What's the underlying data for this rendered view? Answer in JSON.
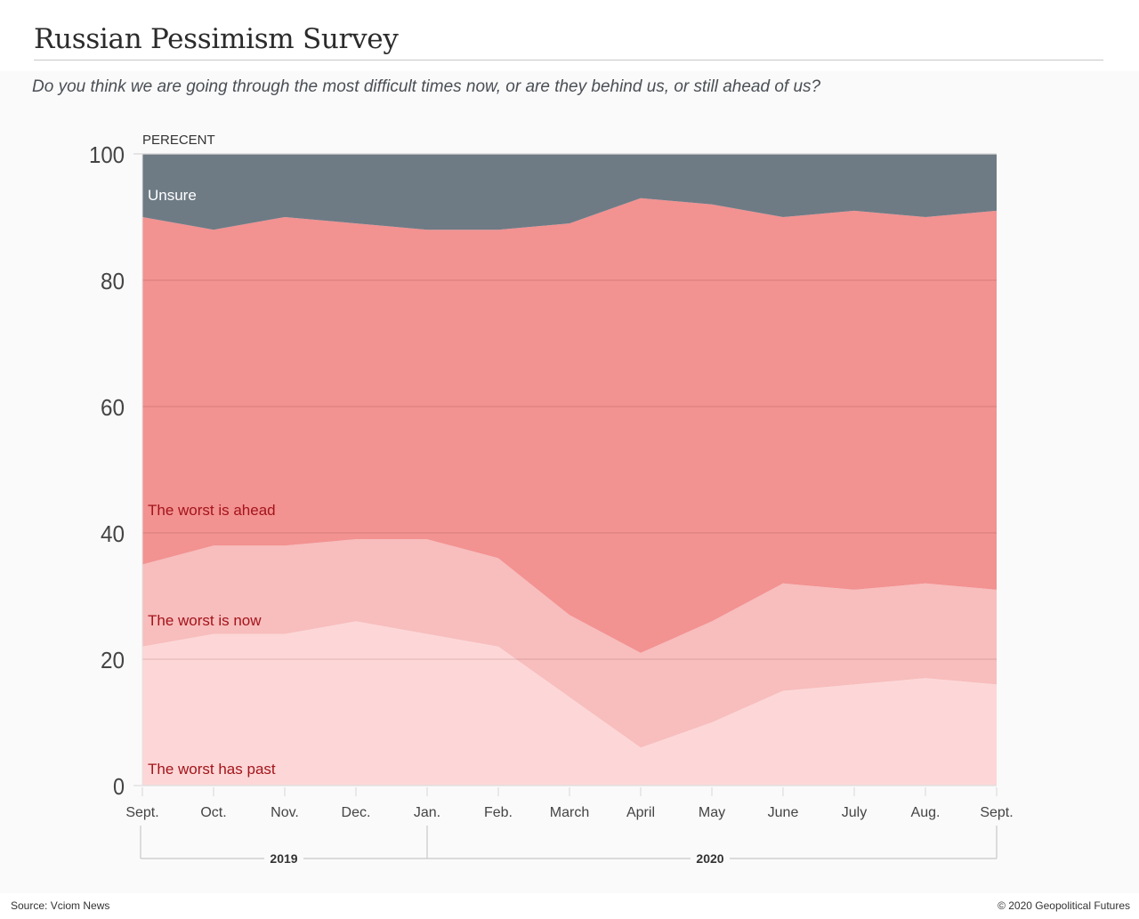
{
  "header": {
    "title": "Russian Pessimism Survey",
    "subtitle": "Do you think we are going through the most difficult times now, or are they behind us, or still ahead of us?"
  },
  "footer": {
    "source": "Source: Vciom News",
    "copyright": "© 2020 Geopolitical Futures"
  },
  "colors": {
    "unsure": "#6e7b85",
    "ahead": "#f29291",
    "now": "#f8bdbd",
    "past": "#fdd7d7",
    "label_dark": "#a3141b",
    "label_light": "#ffffff"
  },
  "chart_data": {
    "type": "area",
    "stacked": true,
    "title": "Russian Pessimism Survey",
    "subtitle": "Do you think we are going through the most difficult times now, or are they behind us, or still ahead of us?",
    "ylabel": "PERECENT",
    "xlabel": "",
    "ylim": [
      0,
      100
    ],
    "yticks": [
      0,
      20,
      40,
      60,
      80,
      100
    ],
    "grid": true,
    "legend": "inline-labels-left",
    "categories": [
      "Sept.",
      "Oct.",
      "Nov.",
      "Dec.",
      "Jan.",
      "Feb.",
      "March",
      "April",
      "May",
      "June",
      "July",
      "Aug.",
      "Sept."
    ],
    "year_groups": [
      {
        "label": "2019",
        "from": 0,
        "to": 4
      },
      {
        "label": "2020",
        "from": 4,
        "to": 12
      }
    ],
    "series": [
      {
        "name": "The worst has past",
        "key": "past",
        "values": [
          22,
          24,
          24,
          26,
          24,
          22,
          14,
          6,
          10,
          15,
          16,
          17,
          16
        ]
      },
      {
        "name": "The worst is now",
        "key": "now",
        "values": [
          13,
          14,
          14,
          13,
          15,
          14,
          13,
          15,
          16,
          17,
          15,
          15,
          15
        ]
      },
      {
        "name": "The worst is ahead",
        "key": "ahead",
        "values": [
          55,
          50,
          52,
          50,
          49,
          52,
          62,
          72,
          66,
          58,
          60,
          58,
          60
        ]
      },
      {
        "name": "Unsure",
        "key": "unsure",
        "values": [
          10,
          12,
          10,
          11,
          12,
          12,
          11,
          7,
          8,
          10,
          9,
          10,
          9
        ]
      }
    ]
  }
}
